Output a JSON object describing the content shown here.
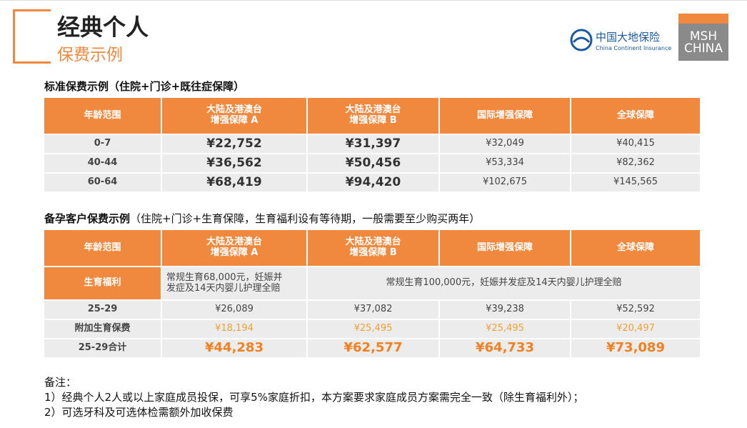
{
  "header": {
    "title": "经典个人",
    "subtitle": "保费示例"
  },
  "logos": {
    "insurer_cn": "中国大地保险",
    "insurer_en": "China Continent Insurance",
    "msh_line1": "MSH",
    "msh_line2": "CHINA"
  },
  "table1": {
    "caption": "标准保费示例（住院+门诊+既往症保障）",
    "columns": [
      "年龄范围",
      "大陆及港澳台\n增强保障 A",
      "大陆及港澳台\n增强保障 B",
      "国际增强保障",
      "全球保障"
    ],
    "rows": [
      [
        "0-7",
        "¥22,752",
        "¥31,397",
        "¥32,049",
        "¥40,415"
      ],
      [
        "40-44",
        "¥36,562",
        "¥50,456",
        "¥53,334",
        "¥82,362"
      ],
      [
        "60-64",
        "¥68,419",
        "¥94,420",
        "¥102,675",
        "¥145,565"
      ]
    ]
  },
  "table2": {
    "caption_bold": "备孕客户保费示例",
    "caption_rest": "（住院+门诊+生育保障，生育福利设有等待期，一般需要至少购买两年）",
    "columns": [
      "年龄范围",
      "大陆及港澳台\n增强保障 A",
      "大陆及港澳台\n增强保障 B",
      "国际增强保障",
      "全球保障"
    ],
    "benefit_row": {
      "label": "生育福利",
      "plan_a": "常规生育68,000元，妊娠并\n发症及14天内婴儿护理全赔",
      "others": "常规生育100,000元，妊娠并发症及14天内婴儿护理全赔"
    },
    "rows": [
      [
        "25-29",
        "¥26,089",
        "¥37,082",
        "¥39,238",
        "¥52,592"
      ],
      [
        "附加生育保费",
        "¥18,194",
        "¥25,495",
        "¥25,495",
        "¥20,497"
      ],
      [
        "25-29合计",
        "¥44,283",
        "¥62,577",
        "¥64,733",
        "¥73,089"
      ]
    ]
  },
  "notes": {
    "title": "备注：",
    "lines": [
      "1）经典个人2人或以上家庭成员投保，可享5%家庭折扣，本方案要求家庭成员方案需完全一致（除生育福利外）；",
      "2）可选牙科及可选体检需额外加收保费"
    ]
  }
}
